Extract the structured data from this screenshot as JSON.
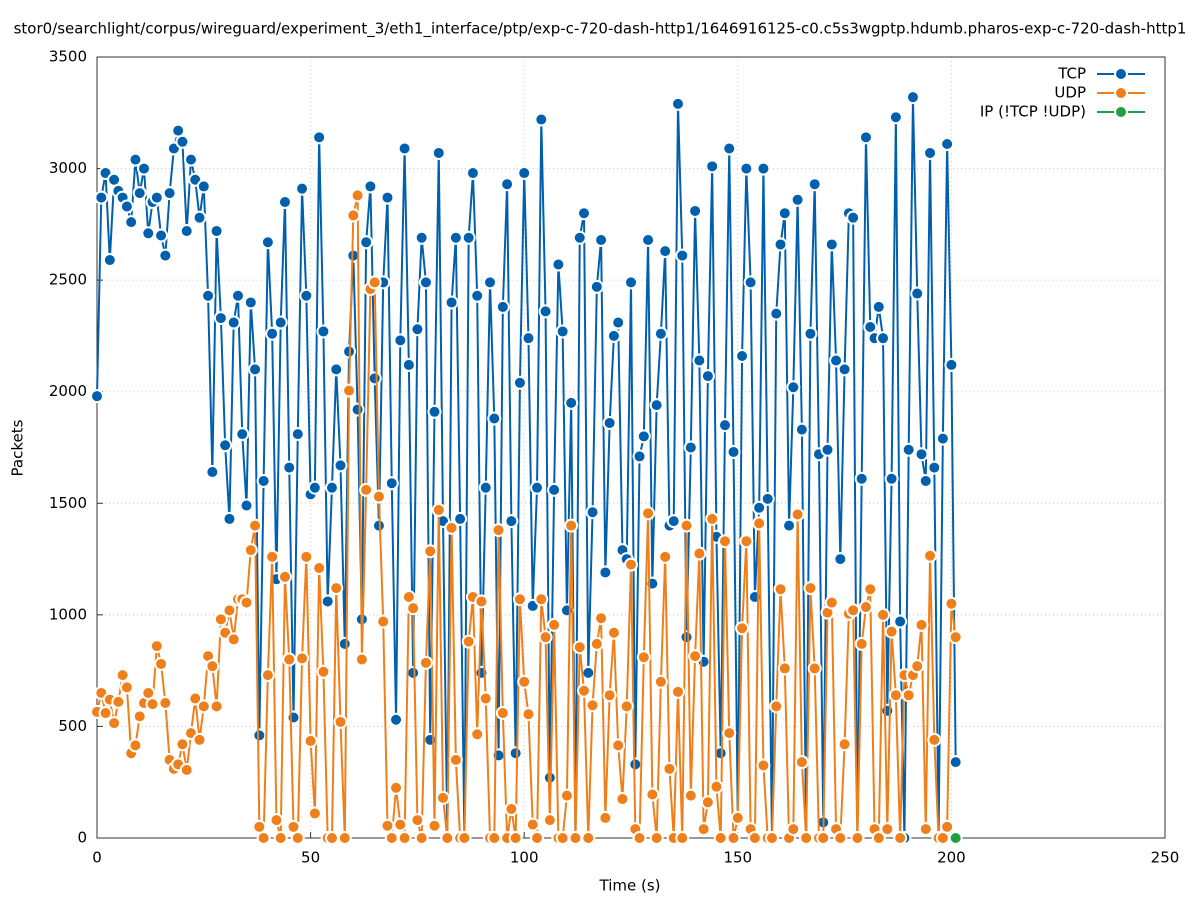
{
  "chart_data": {
    "type": "line",
    "title": "stor0/searchlight/corpus/wireguard/experiment_3/eth1_interface/ptp/exp-c-720-dash-http1/1646916125-c0.c5s3wgptp.hdumb.pharos-exp-c-720-dash-http1",
    "x_label": "Time (s)",
    "y_label": "Packets",
    "xlim": [
      0,
      250
    ],
    "ylim": [
      0,
      3500
    ],
    "xticks": [
      0,
      50,
      100,
      150,
      200,
      250
    ],
    "yticks": [
      0,
      500,
      1000,
      1500,
      2000,
      2500,
      3000,
      3500
    ],
    "grid": true,
    "legend": "top-right",
    "x": [
      0,
      1,
      2,
      3,
      4,
      5,
      6,
      7,
      8,
      9,
      10,
      11,
      12,
      13,
      14,
      15,
      16,
      17,
      18,
      19,
      20,
      21,
      22,
      23,
      24,
      25,
      26,
      27,
      28,
      29,
      30,
      31,
      32,
      33,
      34,
      35,
      36,
      37,
      38,
      39,
      40,
      41,
      42,
      43,
      44,
      45,
      46,
      47,
      48,
      49,
      50,
      51,
      52,
      53,
      54,
      55,
      56,
      57,
      58,
      59,
      60,
      61,
      62,
      63,
      64,
      65,
      66,
      67,
      68,
      69,
      70,
      71,
      72,
      73,
      74,
      75,
      76,
      77,
      78,
      79,
      80,
      81,
      82,
      83,
      84,
      85,
      86,
      87,
      88,
      89,
      90,
      91,
      92,
      93,
      94,
      95,
      96,
      97,
      98,
      99,
      100,
      101,
      102,
      103,
      104,
      105,
      106,
      107,
      108,
      109,
      110,
      111,
      112,
      113,
      114,
      115,
      116,
      117,
      118,
      119,
      120,
      121,
      122,
      123,
      124,
      125,
      126,
      127,
      128,
      129,
      130,
      131,
      132,
      133,
      134,
      135,
      136,
      137,
      138,
      139,
      140,
      141,
      142,
      143,
      144,
      145,
      146,
      147,
      148,
      149,
      150,
      151,
      152,
      153,
      154,
      155,
      156,
      157,
      158,
      159,
      160,
      161,
      162,
      163,
      164,
      165,
      166,
      167,
      168,
      169,
      170,
      171,
      172,
      173,
      174,
      175,
      176,
      177,
      178,
      179,
      180,
      181,
      182,
      183,
      184,
      185,
      186,
      187,
      188,
      189,
      190,
      191,
      192,
      193,
      194,
      195,
      196,
      197,
      198,
      199,
      200,
      201
    ],
    "series": [
      {
        "name": "TCP",
        "color": "#0060ad",
        "values": [
          1980,
          2870,
          2980,
          2590,
          2950,
          2900,
          2870,
          2830,
          2760,
          3040,
          2890,
          3000,
          2710,
          2850,
          2870,
          2700,
          2610,
          2890,
          3090,
          3170,
          3120,
          2720,
          3040,
          2950,
          2780,
          2920,
          2430,
          1640,
          2720,
          2330,
          1760,
          1430,
          2310,
          2430,
          1810,
          1490,
          2400,
          2100,
          460,
          1600,
          2670,
          2260,
          1160,
          2310,
          2850,
          1660,
          540,
          1810,
          2910,
          2430,
          1540,
          1570,
          3140,
          2270,
          1060,
          1570,
          2100,
          1670,
          870,
          2180,
          2610,
          1920,
          980,
          2670,
          2920,
          2060,
          1400,
          2490,
          2870,
          1590,
          530,
          2230,
          3090,
          2120,
          740,
          2280,
          2690,
          2490,
          440,
          1910,
          3070,
          1420,
          0,
          2400,
          2690,
          1430,
          0,
          2690,
          2980,
          2430,
          740,
          1570,
          2490,
          1880,
          370,
          2380,
          2930,
          1420,
          380,
          2040,
          2980,
          2240,
          1040,
          1570,
          3220,
          2360,
          270,
          1560,
          2570,
          2270,
          1020,
          1950,
          0,
          2690,
          2800,
          740,
          1460,
          2470,
          2680,
          1190,
          1860,
          2250,
          2310,
          1290,
          1250,
          2490,
          330,
          1710,
          1800,
          2680,
          1140,
          1940,
          2260,
          2630,
          1400,
          1420,
          3290,
          2610,
          900,
          1750,
          2810,
          2140,
          790,
          2070,
          3010,
          1350,
          380,
          1850,
          3090,
          1730,
          90,
          2160,
          3000,
          2490,
          1080,
          1480,
          3000,
          1520,
          0,
          2350,
          2660,
          2800,
          1400,
          2020,
          2860,
          1830,
          0,
          2260,
          2930,
          1720,
          70,
          1740,
          2660,
          2140,
          1250,
          2100,
          2800,
          2780,
          0,
          1610,
          3140,
          2290,
          2240,
          2380,
          2240,
          570,
          1610,
          3230,
          970,
          0,
          1740,
          3320,
          2440,
          1720,
          1600,
          3070,
          1660,
          0,
          1790,
          3110,
          2120,
          340
        ]
      },
      {
        "name": "UDP",
        "color": "#ef7f1a",
        "values": [
          565,
          650,
          560,
          620,
          515,
          610,
          730,
          675,
          380,
          415,
          545,
          605,
          650,
          600,
          860,
          780,
          605,
          350,
          310,
          330,
          420,
          305,
          470,
          625,
          440,
          590,
          815,
          770,
          590,
          980,
          920,
          1020,
          890,
          1070,
          1070,
          1055,
          1290,
          1400,
          50,
          0,
          730,
          1260,
          80,
          0,
          1170,
          800,
          50,
          0,
          805,
          1260,
          435,
          110,
          1210,
          745,
          0,
          0,
          1120,
          520,
          0,
          2005,
          2790,
          2880,
          800,
          1560,
          2460,
          2490,
          1530,
          970,
          55,
          0,
          225,
          60,
          0,
          1080,
          1030,
          80,
          0,
          785,
          1285,
          55,
          1470,
          180,
          0,
          1390,
          350,
          0,
          0,
          880,
          1080,
          465,
          1060,
          625,
          0,
          0,
          1380,
          560,
          0,
          130,
          0,
          1070,
          700,
          555,
          60,
          0,
          1070,
          900,
          80,
          955,
          0,
          0,
          190,
          1400,
          0,
          855,
          660,
          0,
          595,
          870,
          985,
          90,
          640,
          920,
          415,
          175,
          590,
          1225,
          40,
          0,
          810,
          1455,
          195,
          0,
          700,
          1260,
          310,
          0,
          655,
          0,
          1400,
          190,
          815,
          1275,
          40,
          160,
          1430,
          230,
          0,
          1330,
          470,
          0,
          90,
          940,
          1330,
          40,
          0,
          1410,
          325,
          0,
          0,
          590,
          1115,
          760,
          0,
          40,
          1450,
          340,
          0,
          1120,
          760,
          0,
          0,
          1010,
          1055,
          40,
          0,
          420,
          1005,
          1020,
          0,
          870,
          1035,
          1115,
          40,
          0,
          1000,
          40,
          925,
          640,
          0,
          730,
          640,
          730,
          770,
          955,
          40,
          1265,
          440,
          0,
          0,
          50,
          1050,
          900
        ]
      },
      {
        "name": "IP (!TCP  !UDP)",
        "color": "#20a040",
        "x": [
          201
        ],
        "values": [
          0
        ]
      }
    ]
  }
}
